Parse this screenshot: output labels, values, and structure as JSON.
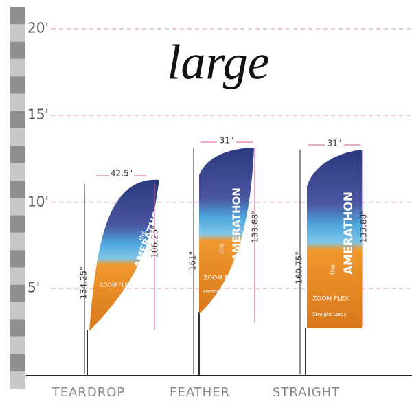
{
  "title": "large",
  "ruler": {
    "marks": [
      "20'",
      "15'",
      "10'",
      "5'"
    ]
  },
  "flags": [
    {
      "name": "TEARDROP",
      "width": "42.5\"",
      "pole_height": "134.25\"",
      "flag_height": "106.25\"",
      "brand_small": "the",
      "brand": "AMERATHON",
      "product": "ZOOM FLEX"
    },
    {
      "name": "FEATHER",
      "width": "31\"",
      "pole_height": "161\"",
      "flag_height": "133.88\"",
      "brand_small": "the",
      "brand": "AMERATHON",
      "product": "ZOOM FLEX",
      "size": "Feather Large"
    },
    {
      "name": "STRAIGHT",
      "width": "31\"",
      "pole_height": "160.75\"",
      "flag_height": "133.88\"",
      "brand_small": "the",
      "brand": "AMERATHON",
      "product": "ZOOM FLEX",
      "size": "Straight Large"
    }
  ]
}
